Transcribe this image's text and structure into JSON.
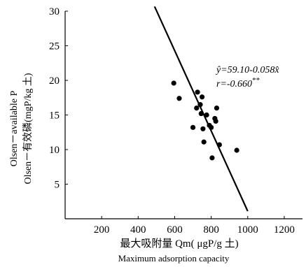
{
  "chart_data": {
    "type": "scatter",
    "xlabel": "最大吸附量 Qm( μgP/g 土)",
    "xlabel_en": "Maximum adsorption capacity",
    "ylabel": "Olsen－有效磷(mgP/kg 土)",
    "ylabel_en": "Olsen－available P",
    "xlim": [
      0,
      1300
    ],
    "ylim": [
      0,
      30
    ],
    "x_ticks": [
      200,
      400,
      600,
      800,
      1000,
      1200
    ],
    "y_ticks": [
      5,
      10,
      15,
      20,
      25,
      30
    ],
    "grid": false,
    "points": [
      {
        "x": 595,
        "y": 19.6
      },
      {
        "x": 625,
        "y": 17.4
      },
      {
        "x": 700,
        "y": 13.2
      },
      {
        "x": 720,
        "y": 16.0
      },
      {
        "x": 725,
        "y": 18.3
      },
      {
        "x": 740,
        "y": 16.5
      },
      {
        "x": 745,
        "y": 15.2
      },
      {
        "x": 750,
        "y": 17.6
      },
      {
        "x": 755,
        "y": 13.0
      },
      {
        "x": 760,
        "y": 11.1
      },
      {
        "x": 775,
        "y": 15.0
      },
      {
        "x": 790,
        "y": 13.5
      },
      {
        "x": 800,
        "y": 13.2
      },
      {
        "x": 805,
        "y": 8.8
      },
      {
        "x": 820,
        "y": 14.5
      },
      {
        "x": 825,
        "y": 14.1
      },
      {
        "x": 830,
        "y": 16.0
      },
      {
        "x": 845,
        "y": 10.7
      },
      {
        "x": 940,
        "y": 9.9
      }
    ],
    "regression": {
      "intercept": 59.1,
      "slope": -0.058,
      "x_start": 490,
      "x_end": 1000
    },
    "annotation_eq_lhs": "ŷ",
    "annotation_eq_rhs": "=59.10-0.058x̂",
    "annotation_r": "r=-0.660",
    "annotation_r_mark": "**"
  }
}
